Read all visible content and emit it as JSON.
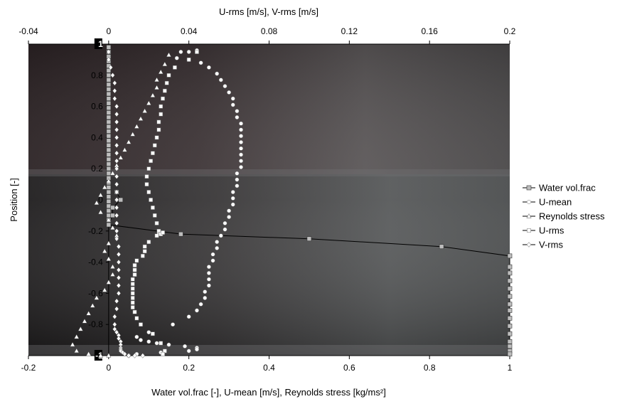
{
  "chart_data": {
    "type": "scatter",
    "title": "",
    "xlabel_bottom": "Water vol.frac [-], U-mean [m/s], Reynolds stress [kg/ms²]",
    "xlabel_top": "U-rms [m/s], V-rms [m/s]",
    "ylabel": "Position [-]",
    "x_bottom_range": [
      -0.2,
      1.0
    ],
    "x_top_range": [
      -0.04,
      0.2
    ],
    "y_range": [
      -1.0,
      1.0
    ],
    "x_bottom_ticks": [
      "-0.2",
      "0",
      "0.2",
      "0.4",
      "0.6",
      "0.8",
      "1"
    ],
    "x_top_ticks": [
      "-0.04",
      "0",
      "0.04",
      "0.08",
      "0.12",
      "0.16",
      "0.2"
    ],
    "y_ticks": [
      "-1",
      "-0.8",
      "-0.6",
      "-0.4",
      "-0.2",
      "0",
      "0.2",
      "0.4",
      "0.6",
      "0.8",
      "1"
    ],
    "grid": false,
    "background": "photo of pipe flow (dark grey)",
    "legend_position": "right",
    "series": [
      {
        "name": "Water vol.frac",
        "axis": "bottom",
        "marker": "square-grey",
        "x": [
          0,
          0,
          0,
          0,
          0,
          0,
          0,
          0,
          0,
          0,
          0,
          0,
          0,
          0,
          0,
          0,
          0,
          0,
          0,
          0,
          0,
          0,
          0,
          0,
          0,
          0,
          0,
          0,
          0,
          0,
          0,
          0,
          0,
          0,
          0,
          0,
          0,
          0,
          0.02,
          0.03,
          0.01,
          0.01,
          0.0,
          0.18,
          0.5,
          0.83,
          1.0,
          1.0,
          1.0,
          1.0,
          1.0,
          1.0,
          1.0,
          1.0,
          1.0,
          1.0,
          1.0,
          1.0,
          1.0,
          1.0,
          1.0
        ],
        "y": [
          0.98,
          0.95,
          0.92,
          0.89,
          0.86,
          0.83,
          0.8,
          0.77,
          0.74,
          0.71,
          0.68,
          0.65,
          0.62,
          0.59,
          0.56,
          0.53,
          0.5,
          0.47,
          0.44,
          0.41,
          0.38,
          0.35,
          0.32,
          0.29,
          0.26,
          0.23,
          0.2,
          0.17,
          0.14,
          0.11,
          0.08,
          0.05,
          0.02,
          -0.01,
          -0.04,
          -0.07,
          -0.1,
          -0.13,
          0.05,
          0.0,
          -0.05,
          -0.1,
          -0.16,
          -0.22,
          -0.25,
          -0.3,
          -0.36,
          -0.43,
          -0.47,
          -0.52,
          -0.57,
          -0.62,
          -0.67,
          -0.71,
          -0.76,
          -0.81,
          -0.86,
          -0.91,
          -0.94,
          -0.97,
          -0.99
        ]
      },
      {
        "name": "U-mean",
        "axis": "bottom",
        "marker": "circle",
        "x": [
          0.22,
          0.2,
          0.18,
          0.17,
          0.2,
          0.23,
          0.25,
          0.27,
          0.28,
          0.29,
          0.3,
          0.31,
          0.31,
          0.32,
          0.32,
          0.33,
          0.33,
          0.33,
          0.33,
          0.33,
          0.33,
          0.33,
          0.33,
          0.32,
          0.32,
          0.32,
          0.31,
          0.31,
          0.31,
          0.3,
          0.3,
          0.29,
          0.29,
          0.28,
          0.27,
          0.27,
          0.26,
          0.26,
          0.25,
          0.25,
          0.25,
          0.25,
          0.24,
          0.24,
          0.23,
          0.22,
          0.2,
          0.16,
          0.1,
          0.07,
          0.08,
          0.1,
          0.12,
          0.15,
          0.19,
          0.22,
          0.22,
          0.2,
          0.13,
          0.07,
          0.05
        ],
        "y": [
          0.96,
          0.95,
          0.95,
          0.91,
          0.9,
          0.88,
          0.85,
          0.81,
          0.77,
          0.73,
          0.69,
          0.65,
          0.61,
          0.57,
          0.53,
          0.49,
          0.45,
          0.41,
          0.37,
          0.33,
          0.29,
          0.25,
          0.21,
          0.17,
          0.13,
          0.09,
          0.05,
          0.01,
          -0.03,
          -0.07,
          -0.11,
          -0.15,
          -0.19,
          -0.23,
          -0.27,
          -0.31,
          -0.35,
          -0.39,
          -0.43,
          -0.47,
          -0.51,
          -0.55,
          -0.59,
          -0.63,
          -0.67,
          -0.71,
          -0.75,
          -0.8,
          -0.85,
          -0.88,
          -0.9,
          -0.91,
          -0.92,
          -0.93,
          -0.94,
          -0.95,
          -0.96,
          -0.97,
          -0.98,
          -0.99,
          -1.0
        ]
      },
      {
        "name": "Reynolds stress",
        "axis": "bottom",
        "marker": "triangle",
        "x": [
          0.15,
          0.14,
          0.13,
          0.12,
          0.12,
          0.11,
          0.1,
          0.09,
          0.08,
          0.07,
          0.06,
          0.05,
          0.04,
          0.03,
          0.02,
          0.01,
          0.0,
          -0.01,
          -0.02,
          -0.03,
          -0.02,
          0.0,
          0.01,
          0.02,
          0.0,
          -0.01,
          0.0,
          0.01,
          0.01,
          0.0,
          -0.01,
          -0.03,
          -0.04,
          -0.05,
          -0.06,
          -0.07,
          -0.08,
          -0.09,
          -0.08,
          -0.05,
          -0.02,
          0.0
        ],
        "y": [
          0.93,
          0.87,
          0.82,
          0.77,
          0.72,
          0.67,
          0.62,
          0.57,
          0.52,
          0.47,
          0.42,
          0.37,
          0.32,
          0.27,
          0.22,
          0.17,
          0.12,
          0.08,
          0.03,
          -0.02,
          -0.08,
          -0.13,
          -0.18,
          -0.23,
          -0.28,
          -0.33,
          -0.38,
          -0.43,
          -0.48,
          -0.53,
          -0.58,
          -0.63,
          -0.68,
          -0.73,
          -0.78,
          -0.83,
          -0.88,
          -0.93,
          -0.97,
          -0.99,
          -1.0,
          -1.0
        ]
      },
      {
        "name": "U-rms",
        "axis": "top",
        "marker": "square-white",
        "x": [
          0.044,
          0.04,
          0.033,
          0.03,
          0.029,
          0.028,
          0.027,
          0.026,
          0.026,
          0.025,
          0.025,
          0.024,
          0.023,
          0.022,
          0.021,
          0.02,
          0.019,
          0.019,
          0.02,
          0.021,
          0.022,
          0.023,
          0.024,
          0.025,
          0.025,
          0.026,
          0.027,
          0.024,
          0.02,
          0.018,
          0.018,
          0.017,
          0.014,
          0.013,
          0.013,
          0.013,
          0.012,
          0.012,
          0.012,
          0.012,
          0.012,
          0.012,
          0.012,
          0.013,
          0.014,
          0.016,
          0.022,
          0.026,
          0.028,
          0.027
        ],
        "y": [
          0.95,
          0.9,
          0.85,
          0.8,
          0.75,
          0.7,
          0.65,
          0.6,
          0.55,
          0.5,
          0.45,
          0.4,
          0.35,
          0.3,
          0.25,
          0.2,
          0.15,
          0.1,
          0.05,
          0.0,
          -0.05,
          -0.1,
          -0.15,
          -0.2,
          -0.22,
          -0.22,
          -0.21,
          -0.23,
          -0.27,
          -0.3,
          -0.33,
          -0.36,
          -0.39,
          -0.42,
          -0.45,
          -0.48,
          -0.51,
          -0.54,
          -0.57,
          -0.6,
          -0.63,
          -0.66,
          -0.69,
          -0.72,
          -0.76,
          -0.8,
          -0.86,
          -0.92,
          -0.97,
          -0.99
        ]
      },
      {
        "name": "V-rms",
        "axis": "top",
        "marker": "diamond",
        "x": [
          0.0,
          0.0,
          0.001,
          0.002,
          0.003,
          0.003,
          0.003,
          0.004,
          0.004,
          0.004,
          0.004,
          0.004,
          0.004,
          0.004,
          0.004,
          0.004,
          0.004,
          0.004,
          0.004,
          0.004,
          0.004,
          0.004,
          0.004,
          0.004,
          0.004,
          0.005,
          0.005,
          0.005,
          0.005,
          0.005,
          0.005,
          0.005,
          0.004,
          0.004,
          0.003,
          0.003,
          0.003,
          0.004,
          0.005,
          0.005,
          0.006,
          0.006,
          0.006,
          0.006,
          0.006,
          0.007,
          0.008,
          0.01,
          0.013,
          0.017
        ],
        "y": [
          0.95,
          0.9,
          0.85,
          0.8,
          0.75,
          0.7,
          0.65,
          0.6,
          0.55,
          0.5,
          0.45,
          0.4,
          0.35,
          0.3,
          0.25,
          0.2,
          0.15,
          0.1,
          0.05,
          0.0,
          -0.05,
          -0.1,
          -0.15,
          -0.2,
          -0.25,
          -0.3,
          -0.35,
          -0.4,
          -0.45,
          -0.5,
          -0.55,
          -0.6,
          -0.65,
          -0.7,
          -0.75,
          -0.8,
          -0.83,
          -0.85,
          -0.87,
          -0.89,
          -0.91,
          -0.93,
          -0.95,
          -0.96,
          -0.97,
          -0.98,
          -0.99,
          -1.0,
          -1.0,
          -1.0
        ]
      }
    ]
  }
}
